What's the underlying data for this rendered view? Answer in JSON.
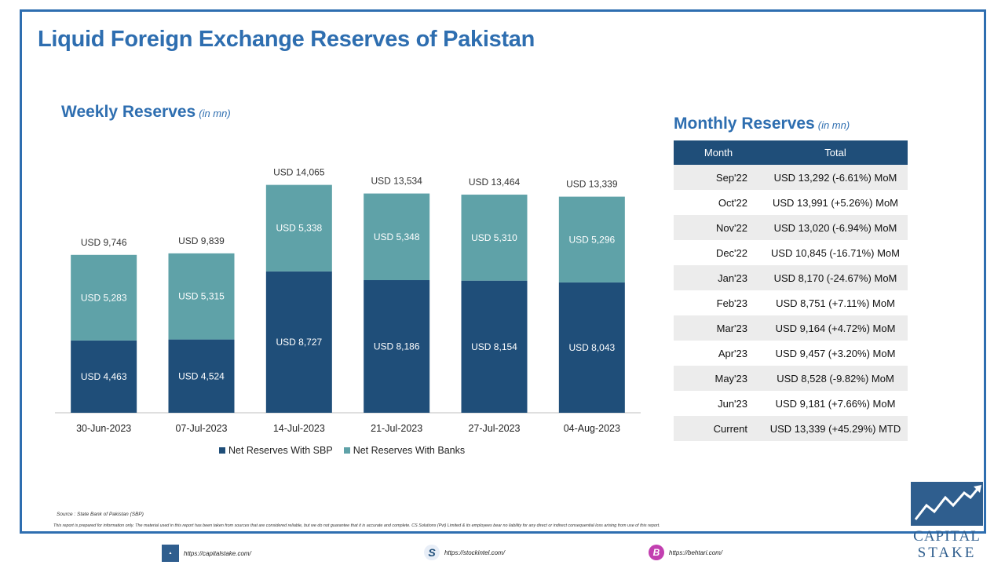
{
  "title": "Liquid Foreign Exchange Reserves of Pakistan",
  "weekly": {
    "title": "Weekly Reserves",
    "unit": "(in mn)"
  },
  "chart_data": {
    "type": "bar",
    "stacked": true,
    "categories": [
      "30-Jun-2023",
      "07-Jul-2023",
      "14-Jul-2023",
      "21-Jul-2023",
      "27-Jul-2023",
      "04-Aug-2023"
    ],
    "series": [
      {
        "name": "Net Reserves With SBP",
        "values": [
          4463,
          4524,
          8727,
          8186,
          8154,
          8043
        ],
        "labels": [
          "USD 4,463",
          "USD 4,524",
          "USD 8,727",
          "USD 8,186",
          "USD 8,154",
          "USD 8,043"
        ],
        "color": "#1f4e79"
      },
      {
        "name": "Net Reserves With Banks",
        "values": [
          5283,
          5315,
          5338,
          5348,
          5310,
          5296
        ],
        "labels": [
          "USD 5,283",
          "USD 5,315",
          "USD 5,338",
          "USD 5,348",
          "USD 5,310",
          "USD 5,296"
        ],
        "color": "#5fa2a8"
      }
    ],
    "totals": [
      9746,
      9839,
      14065,
      13534,
      13464,
      13339
    ],
    "total_labels": [
      "USD 9,746",
      "USD 9,839",
      "USD 14,065",
      "USD 13,534",
      "USD 13,464",
      "USD 13,339"
    ],
    "ylim": [
      0,
      15500
    ],
    "grid": false,
    "legend_position": "bottom"
  },
  "monthly": {
    "title": "Monthly Reserves",
    "unit": "(in mn)",
    "headers": [
      "Month",
      "Total"
    ],
    "rows": [
      [
        "Sep'22",
        "USD 13,292 (-6.61%) MoM"
      ],
      [
        "Oct'22",
        "USD 13,991 (+5.26%) MoM"
      ],
      [
        "Nov'22",
        "USD 13,020 (-6.94%) MoM"
      ],
      [
        "Dec'22",
        "USD 10,845 (-16.71%) MoM"
      ],
      [
        "Jan'23",
        "USD 8,170 (-24.67%) MoM"
      ],
      [
        "Feb'23",
        "USD 8,751 (+7.11%) MoM"
      ],
      [
        "Mar'23",
        "USD 9,164 (+4.72%) MoM"
      ],
      [
        "Apr'23",
        "USD 9,457 (+3.20%) MoM"
      ],
      [
        "May'23",
        "USD 8,528 (-9.82%) MoM"
      ],
      [
        "Jun'23",
        "USD 9,181 (+7.66%) MoM"
      ],
      [
        "Current",
        "USD 13,339 (+45.29%) MTD"
      ]
    ]
  },
  "source": "Source : State Bank of Pakistan (SBP)",
  "disclaimer": "This report is prepared for information only. The material used in this report has been taken from sources that are considered reliable, but we do not guarantee that it is accurate and complete. CS Solutions (Pvt) Limited & its employees bear no liability for any direct or indirect consequential loss arising from use of this report.",
  "logo": {
    "line1": "CAPITAL",
    "line2": "STAKE"
  },
  "footer": {
    "link1": "https://capitalstake.com/",
    "link2": "https://stockintel.com/",
    "link3": "https://behtari.com/"
  },
  "colors": {
    "accent": "#2e6eb0",
    "sbp": "#1f4e79",
    "banks": "#5fa2a8",
    "table_header": "#1f4e79",
    "table_shade": "#ececec"
  }
}
